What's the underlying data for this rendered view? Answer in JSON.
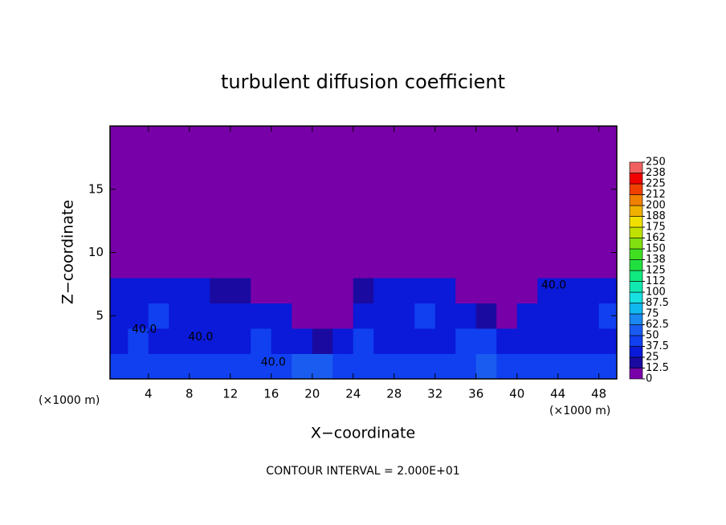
{
  "chart_data": {
    "type": "heatmap",
    "title": "turbulent diffusion coefficient",
    "x_label": "X−coordinate",
    "y_label": "Z−coordinate",
    "x_unit_label": "(×1000 m)",
    "footer": "CONTOUR INTERVAL = 2.000E+01",
    "xlim": [
      0.25,
      49.75
    ],
    "ylim": [
      0,
      20
    ],
    "xticks": [
      4,
      8,
      12,
      16,
      20,
      24,
      28,
      32,
      36,
      40,
      44,
      48
    ],
    "yticks": [
      5,
      10,
      15
    ],
    "x": [
      1,
      3,
      5,
      7,
      9,
      11,
      13,
      15,
      17,
      19,
      21,
      23,
      25,
      27,
      29,
      31,
      33,
      35,
      37,
      39,
      41,
      43,
      45,
      47,
      49
    ],
    "y": [
      1,
      3,
      5,
      7,
      9,
      11,
      13,
      15,
      17,
      19
    ],
    "z": [
      [
        45,
        45,
        40,
        42,
        40,
        40,
        42,
        45,
        48,
        50,
        50,
        48,
        45,
        42,
        40,
        42,
        40,
        48,
        52,
        48,
        42,
        40,
        40,
        42,
        45
      ],
      [
        35,
        38,
        35,
        32,
        35,
        35,
        35,
        38,
        35,
        30,
        20,
        30,
        40,
        35,
        35,
        35,
        35,
        38,
        40,
        30,
        35,
        35,
        35,
        35,
        35
      ],
      [
        35,
        35,
        38,
        35,
        30,
        32,
        30,
        28,
        25,
        0,
        0,
        0,
        35,
        35,
        35,
        38,
        35,
        30,
        20,
        0,
        30,
        35,
        35,
        35,
        38
      ],
      [
        30,
        28,
        25,
        28,
        25,
        20,
        15,
        0,
        0,
        0,
        0,
        0,
        15,
        30,
        35,
        35,
        30,
        0,
        0,
        0,
        0,
        30,
        30,
        25,
        25
      ],
      [
        0,
        0,
        0,
        0,
        0,
        0,
        0,
        0,
        0,
        0,
        0,
        0,
        0,
        0,
        0,
        0,
        0,
        0,
        0,
        0,
        0,
        0,
        0,
        0,
        0
      ],
      [
        0,
        0,
        0,
        0,
        0,
        0,
        0,
        0,
        0,
        0,
        0,
        0,
        0,
        0,
        0,
        0,
        0,
        0,
        0,
        0,
        0,
        0,
        0,
        0,
        0
      ],
      [
        0,
        0,
        0,
        0,
        0,
        0,
        0,
        0,
        0,
        0,
        0,
        0,
        0,
        0,
        0,
        0,
        0,
        0,
        0,
        0,
        0,
        0,
        0,
        0,
        0
      ],
      [
        0,
        0,
        0,
        0,
        0,
        0,
        0,
        0,
        0,
        0,
        0,
        0,
        0,
        0,
        0,
        0,
        0,
        0,
        0,
        0,
        0,
        0,
        0,
        0,
        0
      ],
      [
        0,
        0,
        0,
        0,
        0,
        0,
        0,
        0,
        0,
        0,
        0,
        0,
        0,
        0,
        0,
        0,
        0,
        0,
        0,
        0,
        0,
        0,
        0,
        0,
        0
      ],
      [
        0,
        0,
        0,
        0,
        0,
        0,
        0,
        0,
        0,
        0,
        0,
        0,
        0,
        0,
        0,
        0,
        0,
        0,
        0,
        0,
        0,
        0,
        0,
        0,
        0
      ]
    ],
    "clim": [
      0,
      250
    ],
    "cticks": [
      0,
      12.5,
      25,
      37.5,
      50,
      62.5,
      75,
      87.5,
      100,
      {
        "value": 112.5,
        "label": "112"
      },
      125,
      {
        "value": 137.5,
        "label": "138"
      },
      150,
      {
        "value": 162.5,
        "label": "162"
      },
      175,
      {
        "value": 187.5,
        "label": "188"
      },
      200,
      {
        "value": 212.5,
        "label": "212"
      },
      225,
      {
        "value": 237.5,
        "label": "238"
      },
      250
    ],
    "colors": [
      "#7800a8",
      "#1a0aa0",
      "#0a1ad8",
      "#1040f0",
      "#1a5cf0",
      "#1a88f0",
      "#10b8f0",
      "#18e0e0",
      "#10e8b0",
      "#10e880",
      "#20e040",
      "#40e020",
      "#80e010",
      "#c0e000",
      "#f0e000",
      "#f0b000",
      "#f08000",
      "#f04000",
      "#f00000",
      "#f06060"
    ],
    "contour_labels": [
      {
        "text": "40.0",
        "x": 3.6,
        "y": 3.9
      },
      {
        "text": "40.0",
        "x": 9.1,
        "y": 3.3
      },
      {
        "text": "40.0",
        "x": 16.2,
        "y": 1.3
      },
      {
        "text": "40.0",
        "x": 43.6,
        "y": 7.4
      }
    ]
  }
}
